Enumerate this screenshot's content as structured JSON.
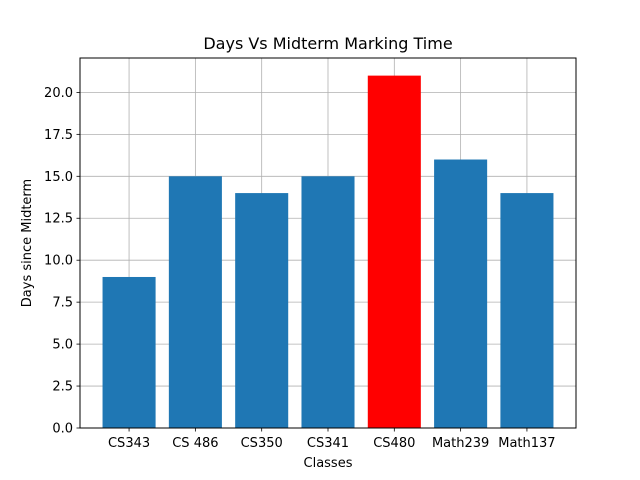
{
  "chart_data": {
    "type": "bar",
    "title": "Days Vs Midterm Marking Time",
    "xlabel": "Classes",
    "ylabel": "Days since Midterm",
    "categories": [
      "CS343",
      "CS 486",
      "CS350",
      "CS341",
      "CS480",
      "Math239",
      "Math137"
    ],
    "values": [
      9,
      15,
      14,
      15,
      21,
      16,
      14
    ],
    "bar_colors": [
      "#1f77b4",
      "#1f77b4",
      "#1f77b4",
      "#1f77b4",
      "#ff0000",
      "#1f77b4",
      "#1f77b4"
    ],
    "ylim": [
      0,
      22.05
    ],
    "yticks": [
      0,
      2.5,
      5,
      7.5,
      10,
      12.5,
      15,
      17.5,
      20
    ],
    "ytick_labels": [
      "0.0",
      "2.5",
      "5.0",
      "7.5",
      "10.0",
      "12.5",
      "15.0",
      "17.5",
      "20.0"
    ],
    "grid": true,
    "colors": {
      "default_bar": "#1f77b4",
      "highlight_bar": "#ff0000",
      "grid": "#b0b0b0"
    }
  }
}
